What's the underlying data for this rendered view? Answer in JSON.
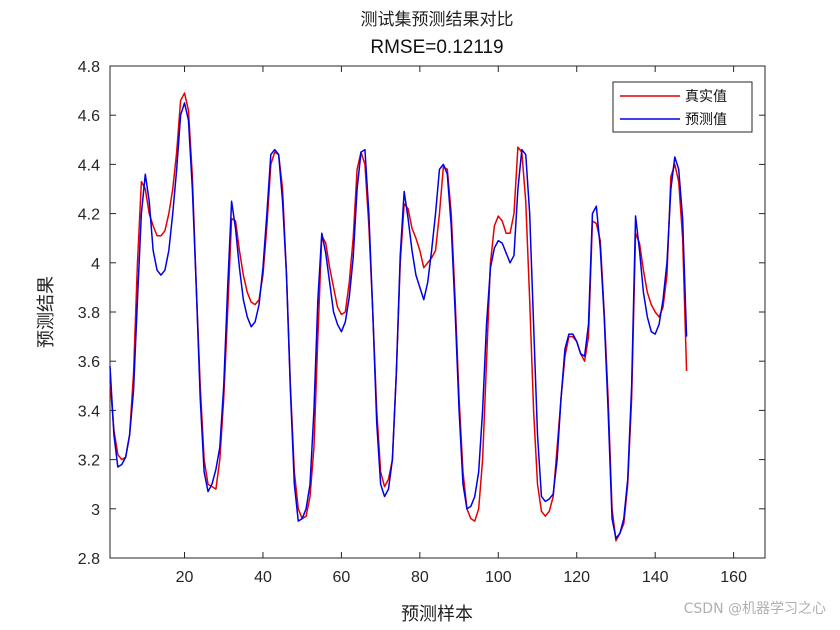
{
  "chart_data": {
    "type": "line",
    "title": "测试集预测结果对比",
    "subtitle": "RMSE=0.12119",
    "xlabel": "预测样本",
    "ylabel": "预测结果",
    "xlim": [
      1,
      168
    ],
    "ylim": [
      2.8,
      4.8
    ],
    "xticks": [
      20,
      40,
      60,
      80,
      100,
      120,
      140,
      160
    ],
    "yticks": [
      2.8,
      3,
      3.2,
      3.4,
      3.6,
      3.8,
      4,
      4.2,
      4.4,
      4.6,
      4.8
    ],
    "ytick_labels": [
      "2.8",
      "3",
      "3.2",
      "3.4",
      "3.6",
      "3.8",
      "4",
      "4.2",
      "4.4",
      "4.6",
      "4.8"
    ],
    "legend_position": "top-right",
    "grid": false,
    "series": [
      {
        "name": "真实值",
        "color": "#e60000",
        "points": [
          [
            1,
            3.52
          ],
          [
            2,
            3.32
          ],
          [
            3,
            3.22
          ],
          [
            4,
            3.2
          ],
          [
            5,
            3.21
          ],
          [
            6,
            3.3
          ],
          [
            7,
            3.55
          ],
          [
            8,
            4.0
          ],
          [
            9,
            4.33
          ],
          [
            10,
            4.3
          ],
          [
            11,
            4.2
          ],
          [
            12,
            4.15
          ],
          [
            13,
            4.11
          ],
          [
            14,
            4.11
          ],
          [
            15,
            4.13
          ],
          [
            16,
            4.2
          ],
          [
            17,
            4.3
          ],
          [
            18,
            4.45
          ],
          [
            19,
            4.66
          ],
          [
            20,
            4.69
          ],
          [
            21,
            4.62
          ],
          [
            22,
            4.35
          ],
          [
            23,
            3.9
          ],
          [
            24,
            3.5
          ],
          [
            25,
            3.2
          ],
          [
            26,
            3.1
          ],
          [
            27,
            3.09
          ],
          [
            28,
            3.08
          ],
          [
            29,
            3.2
          ],
          [
            30,
            3.45
          ],
          [
            31,
            3.8
          ],
          [
            32,
            4.18
          ],
          [
            33,
            4.17
          ],
          [
            34,
            4.05
          ],
          [
            35,
            3.95
          ],
          [
            36,
            3.88
          ],
          [
            37,
            3.84
          ],
          [
            38,
            3.83
          ],
          [
            39,
            3.85
          ],
          [
            40,
            3.95
          ],
          [
            41,
            4.15
          ],
          [
            42,
            4.4
          ],
          [
            43,
            4.45
          ],
          [
            44,
            4.44
          ],
          [
            45,
            4.3
          ],
          [
            46,
            3.95
          ],
          [
            47,
            3.5
          ],
          [
            48,
            3.15
          ],
          [
            49,
            3.0
          ],
          [
            50,
            2.96
          ],
          [
            51,
            2.97
          ],
          [
            52,
            3.05
          ],
          [
            53,
            3.25
          ],
          [
            54,
            3.7
          ],
          [
            55,
            4.11
          ],
          [
            56,
            4.08
          ],
          [
            57,
            3.98
          ],
          [
            58,
            3.9
          ],
          [
            59,
            3.82
          ],
          [
            60,
            3.79
          ],
          [
            61,
            3.8
          ],
          [
            62,
            3.92
          ],
          [
            63,
            4.1
          ],
          [
            64,
            4.38
          ],
          [
            65,
            4.45
          ],
          [
            66,
            4.4
          ],
          [
            67,
            4.15
          ],
          [
            68,
            3.8
          ],
          [
            69,
            3.4
          ],
          [
            70,
            3.15
          ],
          [
            71,
            3.09
          ],
          [
            72,
            3.12
          ],
          [
            73,
            3.2
          ],
          [
            74,
            3.55
          ],
          [
            75,
            4.0
          ],
          [
            76,
            4.24
          ],
          [
            77,
            4.22
          ],
          [
            78,
            4.14
          ],
          [
            79,
            4.1
          ],
          [
            80,
            4.05
          ],
          [
            81,
            3.98
          ],
          [
            82,
            4.0
          ],
          [
            83,
            4.02
          ],
          [
            84,
            4.05
          ],
          [
            85,
            4.2
          ],
          [
            86,
            4.39
          ],
          [
            87,
            4.38
          ],
          [
            88,
            4.2
          ],
          [
            89,
            3.85
          ],
          [
            90,
            3.45
          ],
          [
            91,
            3.15
          ],
          [
            92,
            3.0
          ],
          [
            93,
            2.96
          ],
          [
            94,
            2.95
          ],
          [
            95,
            3.0
          ],
          [
            96,
            3.2
          ],
          [
            97,
            3.6
          ],
          [
            98,
            4.0
          ],
          [
            99,
            4.15
          ],
          [
            100,
            4.19
          ],
          [
            101,
            4.17
          ],
          [
            102,
            4.12
          ],
          [
            103,
            4.12
          ],
          [
            104,
            4.2
          ],
          [
            105,
            4.47
          ],
          [
            106,
            4.45
          ],
          [
            107,
            4.25
          ],
          [
            108,
            3.85
          ],
          [
            109,
            3.4
          ],
          [
            110,
            3.1
          ],
          [
            111,
            2.99
          ],
          [
            112,
            2.97
          ],
          [
            113,
            2.99
          ],
          [
            114,
            3.05
          ],
          [
            115,
            3.25
          ],
          [
            116,
            3.45
          ],
          [
            117,
            3.62
          ],
          [
            118,
            3.7
          ],
          [
            119,
            3.7
          ],
          [
            120,
            3.68
          ],
          [
            121,
            3.63
          ],
          [
            122,
            3.6
          ],
          [
            123,
            3.7
          ],
          [
            124,
            4.17
          ],
          [
            125,
            4.16
          ],
          [
            126,
            4.09
          ],
          [
            127,
            3.8
          ],
          [
            128,
            3.45
          ],
          [
            129,
            3.0
          ],
          [
            130,
            2.87
          ],
          [
            131,
            2.9
          ],
          [
            132,
            2.94
          ],
          [
            133,
            3.1
          ],
          [
            134,
            3.45
          ],
          [
            135,
            4.12
          ],
          [
            136,
            4.08
          ],
          [
            137,
            3.97
          ],
          [
            138,
            3.88
          ],
          [
            139,
            3.83
          ],
          [
            140,
            3.8
          ],
          [
            141,
            3.78
          ],
          [
            142,
            3.82
          ],
          [
            143,
            3.95
          ],
          [
            144,
            4.35
          ],
          [
            145,
            4.4
          ],
          [
            146,
            4.33
          ],
          [
            147,
            4.1
          ],
          [
            148,
            3.56
          ]
        ]
      },
      {
        "name": "预测值",
        "color": "#0000e6",
        "points": [
          [
            1,
            3.58
          ],
          [
            2,
            3.3
          ],
          [
            3,
            3.17
          ],
          [
            4,
            3.18
          ],
          [
            5,
            3.21
          ],
          [
            6,
            3.3
          ],
          [
            7,
            3.48
          ],
          [
            8,
            3.85
          ],
          [
            9,
            4.2
          ],
          [
            10,
            4.36
          ],
          [
            11,
            4.25
          ],
          [
            12,
            4.05
          ],
          [
            13,
            3.97
          ],
          [
            14,
            3.95
          ],
          [
            15,
            3.97
          ],
          [
            16,
            4.05
          ],
          [
            17,
            4.2
          ],
          [
            18,
            4.38
          ],
          [
            19,
            4.6
          ],
          [
            20,
            4.65
          ],
          [
            21,
            4.58
          ],
          [
            22,
            4.3
          ],
          [
            23,
            3.9
          ],
          [
            24,
            3.45
          ],
          [
            25,
            3.15
          ],
          [
            26,
            3.07
          ],
          [
            27,
            3.1
          ],
          [
            28,
            3.16
          ],
          [
            29,
            3.25
          ],
          [
            30,
            3.5
          ],
          [
            31,
            3.9
          ],
          [
            32,
            4.25
          ],
          [
            33,
            4.14
          ],
          [
            34,
            3.98
          ],
          [
            35,
            3.85
          ],
          [
            36,
            3.78
          ],
          [
            37,
            3.74
          ],
          [
            38,
            3.76
          ],
          [
            39,
            3.83
          ],
          [
            40,
            3.98
          ],
          [
            41,
            4.2
          ],
          [
            42,
            4.44
          ],
          [
            43,
            4.46
          ],
          [
            44,
            4.44
          ],
          [
            45,
            4.25
          ],
          [
            46,
            3.95
          ],
          [
            47,
            3.48
          ],
          [
            48,
            3.1
          ],
          [
            49,
            2.95
          ],
          [
            50,
            2.96
          ],
          [
            51,
            3.0
          ],
          [
            52,
            3.1
          ],
          [
            53,
            3.4
          ],
          [
            54,
            3.85
          ],
          [
            55,
            4.12
          ],
          [
            56,
            4.04
          ],
          [
            57,
            3.92
          ],
          [
            58,
            3.8
          ],
          [
            59,
            3.75
          ],
          [
            60,
            3.72
          ],
          [
            61,
            3.76
          ],
          [
            62,
            3.86
          ],
          [
            63,
            4.02
          ],
          [
            64,
            4.3
          ],
          [
            65,
            4.45
          ],
          [
            66,
            4.46
          ],
          [
            67,
            4.2
          ],
          [
            68,
            3.8
          ],
          [
            69,
            3.35
          ],
          [
            70,
            3.1
          ],
          [
            71,
            3.05
          ],
          [
            72,
            3.08
          ],
          [
            73,
            3.2
          ],
          [
            74,
            3.55
          ],
          [
            75,
            4.03
          ],
          [
            76,
            4.29
          ],
          [
            77,
            4.18
          ],
          [
            78,
            4.05
          ],
          [
            79,
            3.95
          ],
          [
            80,
            3.9
          ],
          [
            81,
            3.85
          ],
          [
            82,
            3.92
          ],
          [
            83,
            4.05
          ],
          [
            84,
            4.2
          ],
          [
            85,
            4.38
          ],
          [
            86,
            4.4
          ],
          [
            87,
            4.36
          ],
          [
            88,
            4.15
          ],
          [
            89,
            3.8
          ],
          [
            90,
            3.4
          ],
          [
            91,
            3.1
          ],
          [
            92,
            3.0
          ],
          [
            93,
            3.01
          ],
          [
            94,
            3.05
          ],
          [
            95,
            3.15
          ],
          [
            96,
            3.4
          ],
          [
            97,
            3.75
          ],
          [
            98,
            3.98
          ],
          [
            99,
            4.06
          ],
          [
            100,
            4.09
          ],
          [
            101,
            4.08
          ],
          [
            102,
            4.04
          ],
          [
            103,
            4.0
          ],
          [
            104,
            4.03
          ],
          [
            105,
            4.3
          ],
          [
            106,
            4.46
          ],
          [
            107,
            4.44
          ],
          [
            108,
            4.2
          ],
          [
            109,
            3.75
          ],
          [
            110,
            3.3
          ],
          [
            111,
            3.05
          ],
          [
            112,
            3.03
          ],
          [
            113,
            3.04
          ],
          [
            114,
            3.06
          ],
          [
            115,
            3.2
          ],
          [
            116,
            3.45
          ],
          [
            117,
            3.65
          ],
          [
            118,
            3.71
          ],
          [
            119,
            3.71
          ],
          [
            120,
            3.68
          ],
          [
            121,
            3.63
          ],
          [
            122,
            3.62
          ],
          [
            123,
            3.75
          ],
          [
            124,
            4.2
          ],
          [
            125,
            4.23
          ],
          [
            126,
            4.06
          ],
          [
            127,
            3.78
          ],
          [
            128,
            3.4
          ],
          [
            129,
            2.96
          ],
          [
            130,
            2.88
          ],
          [
            131,
            2.9
          ],
          [
            132,
            2.96
          ],
          [
            133,
            3.12
          ],
          [
            134,
            3.5
          ],
          [
            135,
            4.19
          ],
          [
            136,
            4.05
          ],
          [
            137,
            3.88
          ],
          [
            138,
            3.78
          ],
          [
            139,
            3.72
          ],
          [
            140,
            3.71
          ],
          [
            141,
            3.75
          ],
          [
            142,
            3.85
          ],
          [
            143,
            4.0
          ],
          [
            144,
            4.3
          ],
          [
            145,
            4.43
          ],
          [
            146,
            4.38
          ],
          [
            147,
            4.18
          ],
          [
            148,
            3.7
          ]
        ]
      }
    ]
  },
  "watermark": "CSDN @机器学习之心"
}
